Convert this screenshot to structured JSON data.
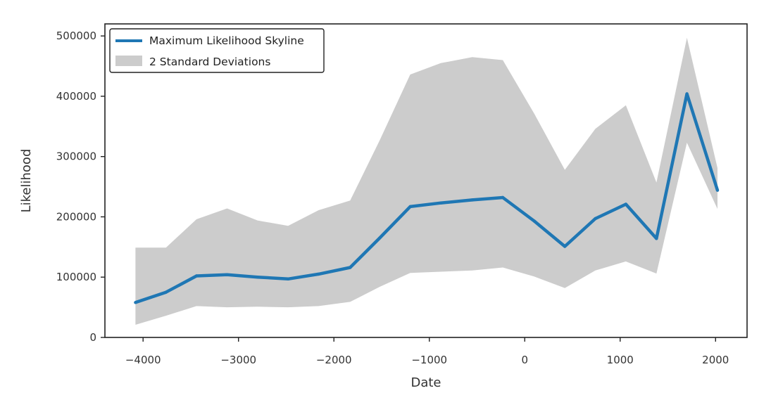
{
  "chart_data": {
    "type": "line",
    "title": "",
    "xlabel": "Date",
    "ylabel": "Likelihood",
    "xlim": [
      -4400,
      2330
    ],
    "ylim": [
      0,
      520000
    ],
    "xticks": [
      -4000,
      -3000,
      -2000,
      -1000,
      0,
      1000,
      2000
    ],
    "xtick_labels": [
      "−4000",
      "−3000",
      "−2000",
      "−1000",
      "0",
      "1000",
      "2000"
    ],
    "yticks": [
      0,
      100000,
      200000,
      300000,
      400000,
      500000
    ],
    "ytick_labels": [
      "0",
      "100000",
      "200000",
      "300000",
      "400000",
      "500000"
    ],
    "grid": false,
    "legend_position": "top-left",
    "legend": [
      {
        "label": "Maximum Likelihood Skyline",
        "kind": "line",
        "color": "#1f77b4"
      },
      {
        "label": "2 Standard Deviations",
        "kind": "patch",
        "color": "#cccccc"
      }
    ],
    "series": [
      {
        "name": "Maximum Likelihood Skyline",
        "color": "#1f77b4",
        "x": [
          -4080,
          -3760,
          -3440,
          -3120,
          -2800,
          -2480,
          -2160,
          -1830,
          -1520,
          -1200,
          -880,
          -550,
          -230,
          100,
          420,
          740,
          1060,
          1380,
          1700,
          2020
        ],
        "y": [
          58000,
          75000,
          102000,
          104000,
          100000,
          97000,
          105000,
          116000,
          165000,
          217000,
          223000,
          228000,
          232000,
          193000,
          151000,
          197000,
          221000,
          164000,
          404000,
          244000
        ]
      }
    ],
    "band": {
      "name": "2 Standard Deviations",
      "color": "#cccccc",
      "x": [
        -4080,
        -3760,
        -3440,
        -3120,
        -2800,
        -2480,
        -2160,
        -1830,
        -1520,
        -1200,
        -880,
        -550,
        -230,
        100,
        420,
        740,
        1060,
        1380,
        1700,
        2020
      ],
      "lower": [
        21000,
        36000,
        52000,
        50000,
        51000,
        50000,
        52000,
        59000,
        84000,
        107000,
        109000,
        111000,
        116000,
        101000,
        82000,
        111000,
        126000,
        106000,
        323000,
        213000
      ],
      "upper": [
        149000,
        149000,
        196000,
        214000,
        194000,
        185000,
        211000,
        227000,
        327000,
        436000,
        455000,
        465000,
        460000,
        371000,
        278000,
        346000,
        385000,
        257000,
        497000,
        281000
      ]
    }
  }
}
